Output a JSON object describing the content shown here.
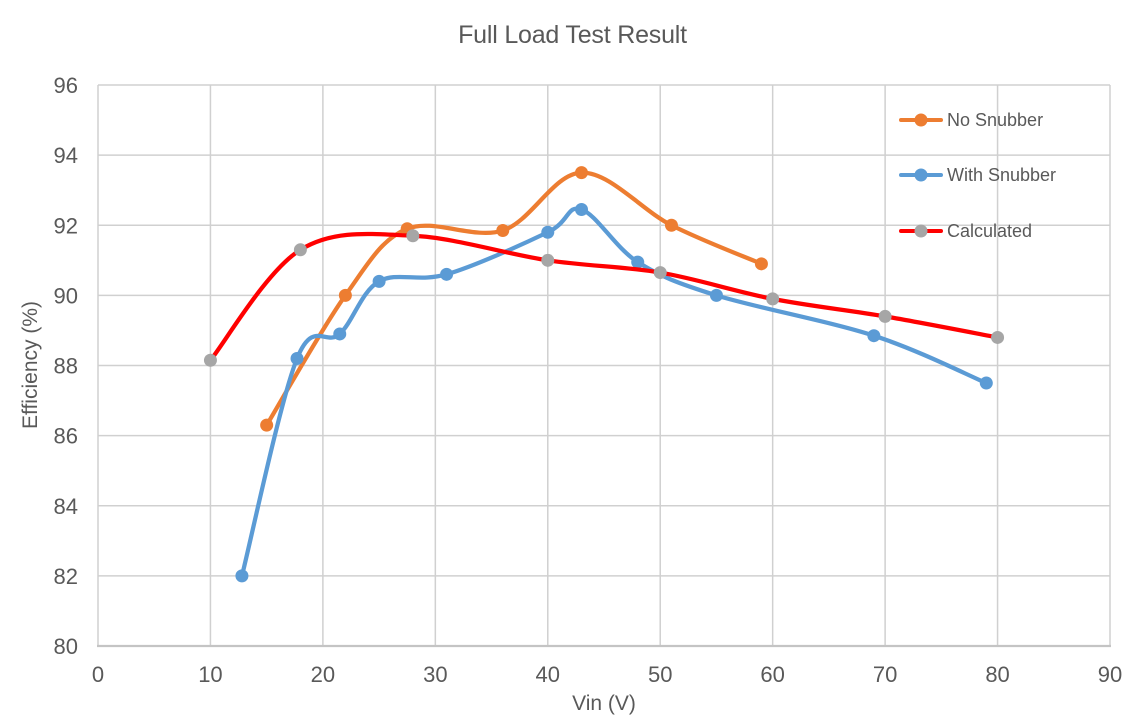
{
  "chart_data": {
    "type": "line",
    "title": "Full Load Test Result",
    "xlabel": "Vin (V)",
    "ylabel": "Efficiency (%)",
    "xlim": [
      0,
      90
    ],
    "ylim": [
      80,
      96
    ],
    "x_ticks": [
      0,
      10,
      20,
      30,
      40,
      50,
      60,
      70,
      80,
      90
    ],
    "y_ticks": [
      80,
      82,
      84,
      86,
      88,
      90,
      92,
      94,
      96
    ],
    "grid": true,
    "line_smoothing": true,
    "legend_position": "top-right",
    "series": [
      {
        "name": "No Snubber",
        "color": "#ED7D31",
        "marker_color": "#ED7D31",
        "points": [
          [
            15,
            86.3
          ],
          [
            22,
            90.0
          ],
          [
            27.5,
            91.9
          ],
          [
            36,
            91.85
          ],
          [
            43,
            93.5
          ],
          [
            51,
            92.0
          ],
          [
            59,
            90.9
          ]
        ]
      },
      {
        "name": "With Snubber",
        "color": "#5B9BD5",
        "marker_color": "#5B9BD5",
        "points": [
          [
            12.8,
            82.0
          ],
          [
            17.7,
            88.2
          ],
          [
            21.5,
            88.9
          ],
          [
            25,
            90.4
          ],
          [
            31,
            90.6
          ],
          [
            40,
            91.8
          ],
          [
            43,
            92.45
          ],
          [
            48,
            90.95
          ],
          [
            55,
            90.0
          ],
          [
            69,
            88.85
          ],
          [
            79,
            87.5
          ]
        ]
      },
      {
        "name": "Calculated",
        "color": "#FF0000",
        "marker_color": "#A6A6A6",
        "points": [
          [
            10,
            88.15
          ],
          [
            18,
            91.3
          ],
          [
            28,
            91.7
          ],
          [
            40,
            91.0
          ],
          [
            50,
            90.65
          ],
          [
            60,
            89.9
          ],
          [
            70,
            89.4
          ],
          [
            80,
            88.8
          ]
        ]
      }
    ]
  }
}
